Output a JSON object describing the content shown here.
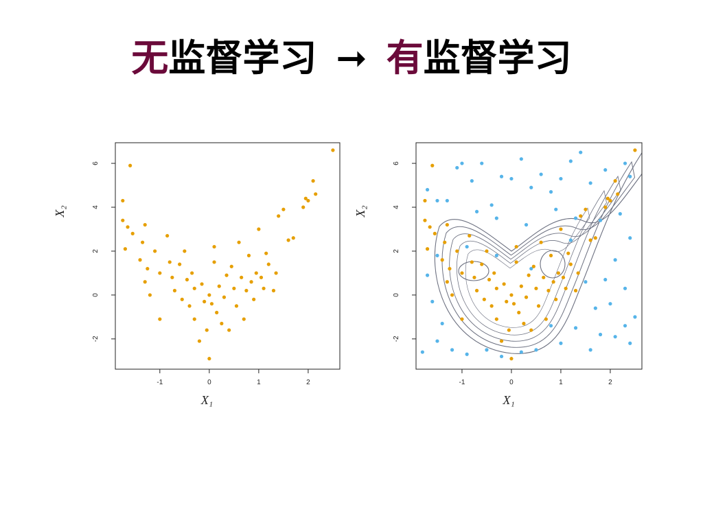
{
  "slide": {
    "title_parts": [
      "无",
      "监督学习",
      "➞",
      "有",
      "监督学习"
    ]
  },
  "chart_data": [
    {
      "type": "scatter",
      "xlabel": "X₁",
      "ylabel": "X₂",
      "xlim": [
        -1.9,
        2.64
      ],
      "ylim": [
        -3.38,
        6.94
      ],
      "xticks": [
        -1,
        0,
        1,
        2
      ],
      "yticks": [
        -2,
        0,
        2,
        4,
        6
      ],
      "series": [
        {
          "color": "#e69f00",
          "x": [
            -1.75,
            -1.6,
            -1.75,
            -1.65,
            -1.7,
            -1.55,
            -1.3,
            -1.35,
            -1.4,
            -1.25,
            -1.3,
            -1.2,
            -1.1,
            -1.0,
            -1.0,
            -0.85,
            -0.8,
            -0.75,
            -0.7,
            -0.6,
            -0.55,
            -0.5,
            -0.45,
            -0.4,
            -0.35,
            -0.3,
            -0.3,
            -0.2,
            -0.15,
            -0.1,
            -0.05,
            0.0,
            0.0,
            0.05,
            0.1,
            0.1,
            0.15,
            0.2,
            0.25,
            0.3,
            0.35,
            0.4,
            0.45,
            0.5,
            0.55,
            0.6,
            0.65,
            0.7,
            0.75,
            0.8,
            0.85,
            0.9,
            0.95,
            1.0,
            1.05,
            1.1,
            1.15,
            1.2,
            1.3,
            1.35,
            1.4,
            1.5,
            1.6,
            1.7,
            1.9,
            1.95,
            2.0,
            2.1,
            2.15,
            2.5
          ],
          "values": [
            4.3,
            5.9,
            3.4,
            3.1,
            2.1,
            2.8,
            3.2,
            2.4,
            1.6,
            1.2,
            0.6,
            0.0,
            2.0,
            1.0,
            -1.1,
            2.7,
            1.5,
            0.8,
            0.2,
            1.4,
            -0.2,
            2.0,
            0.7,
            -0.5,
            1.0,
            0.3,
            -1.1,
            -2.1,
            0.5,
            -0.3,
            -1.6,
            -2.9,
            0.0,
            -0.4,
            1.5,
            2.2,
            -0.8,
            0.4,
            -1.3,
            -0.1,
            0.9,
            -1.6,
            1.3,
            0.3,
            -0.5,
            2.4,
            0.8,
            -1.1,
            0.2,
            1.8,
            0.6,
            -0.2,
            1.0,
            3.0,
            0.8,
            0.3,
            1.9,
            1.4,
            0.2,
            1.0,
            3.6,
            3.9,
            2.5,
            2.6,
            4.0,
            4.4,
            4.3,
            5.2,
            4.6,
            6.6
          ]
        }
      ]
    },
    {
      "type": "scatter",
      "xlabel": "X₁",
      "ylabel": "X₂",
      "xlim": [
        -1.93,
        2.64
      ],
      "ylim": [
        -3.38,
        6.94
      ],
      "xticks": [
        -1,
        0,
        1,
        2
      ],
      "yticks": [
        -2,
        0,
        2,
        4,
        6
      ],
      "series": [
        {
          "color": "#56b4e9",
          "x": [
            -1.7,
            -1.5,
            -1.3,
            -1.1,
            -1.0,
            -0.8,
            -0.6,
            -0.4,
            -0.2,
            0.0,
            0.2,
            0.4,
            0.6,
            0.8,
            1.0,
            1.2,
            1.4,
            1.6,
            1.9,
            2.3,
            2.4,
            -0.7,
            -0.3,
            0.3,
            0.9,
            1.3,
            1.8,
            2.2,
            2.4,
            2.1,
            1.9,
            2.3,
            2.0,
            2.3,
            2.1,
            1.8,
            1.6,
            1.3,
            1.0,
            0.8,
            0.5,
            0.2,
            -0.2,
            -0.5,
            -0.9,
            -1.2,
            -1.5,
            -1.8,
            -1.6,
            -1.4,
            -1.7,
            -1.5,
            -0.9,
            -0.3,
            0.4,
            1.2,
            1.5,
            1.7,
            2.5,
            2.4
          ],
          "values": [
            4.8,
            4.3,
            4.3,
            5.8,
            6.0,
            5.2,
            6.0,
            4.1,
            5.4,
            5.3,
            6.2,
            4.9,
            5.5,
            4.7,
            5.3,
            6.1,
            6.5,
            5.1,
            5.7,
            6.0,
            5.4,
            3.8,
            3.5,
            3.2,
            3.9,
            3.5,
            3.4,
            3.7,
            2.6,
            1.6,
            0.7,
            0.3,
            -0.4,
            -1.4,
            -1.9,
            -1.8,
            -2.5,
            -1.5,
            -2.2,
            -1.4,
            -2.5,
            -2.6,
            -2.8,
            -2.5,
            -2.7,
            -2.5,
            -2.1,
            -2.6,
            -0.3,
            -1.3,
            0.9,
            1.8,
            2.2,
            1.8,
            1.2,
            2.5,
            0.6,
            -0.6,
            -1.0,
            -2.2
          ]
        },
        {
          "color": "#e69f00",
          "x": [
            -1.75,
            -1.6,
            -1.75,
            -1.65,
            -1.7,
            -1.55,
            -1.3,
            -1.35,
            -1.4,
            -1.25,
            -1.3,
            -1.2,
            -1.1,
            -1.0,
            -1.0,
            -0.85,
            -0.8,
            -0.75,
            -0.7,
            -0.6,
            -0.55,
            -0.5,
            -0.45,
            -0.4,
            -0.35,
            -0.3,
            -0.3,
            -0.2,
            -0.15,
            -0.1,
            -0.05,
            0.0,
            0.0,
            0.05,
            0.1,
            0.1,
            0.15,
            0.2,
            0.25,
            0.3,
            0.35,
            0.4,
            0.45,
            0.5,
            0.55,
            0.6,
            0.65,
            0.7,
            0.75,
            0.8,
            0.85,
            0.9,
            0.95,
            1.0,
            1.05,
            1.1,
            1.15,
            1.2,
            1.3,
            1.35,
            1.4,
            1.5,
            1.6,
            1.7,
            1.9,
            1.95,
            2.0,
            2.1,
            2.15,
            2.5
          ],
          "values": [
            4.3,
            5.9,
            3.4,
            3.1,
            2.1,
            2.8,
            3.2,
            2.4,
            1.6,
            1.2,
            0.6,
            0.0,
            2.0,
            1.0,
            -1.1,
            2.7,
            1.5,
            0.8,
            0.2,
            1.4,
            -0.2,
            2.0,
            0.7,
            -0.5,
            1.0,
            0.3,
            -1.1,
            -2.1,
            0.5,
            -0.3,
            -1.6,
            -2.9,
            0.0,
            -0.4,
            1.5,
            2.2,
            -0.8,
            0.4,
            -1.3,
            -0.1,
            0.9,
            -1.6,
            1.3,
            0.3,
            -0.5,
            2.4,
            0.8,
            -1.1,
            0.2,
            1.8,
            0.6,
            -0.2,
            1.0,
            3.0,
            0.8,
            0.3,
            1.9,
            1.4,
            0.2,
            1.0,
            3.6,
            3.9,
            2.5,
            2.6,
            4.0,
            4.4,
            4.3,
            5.2,
            4.6,
            6.6
          ]
        }
      ]
    }
  ]
}
